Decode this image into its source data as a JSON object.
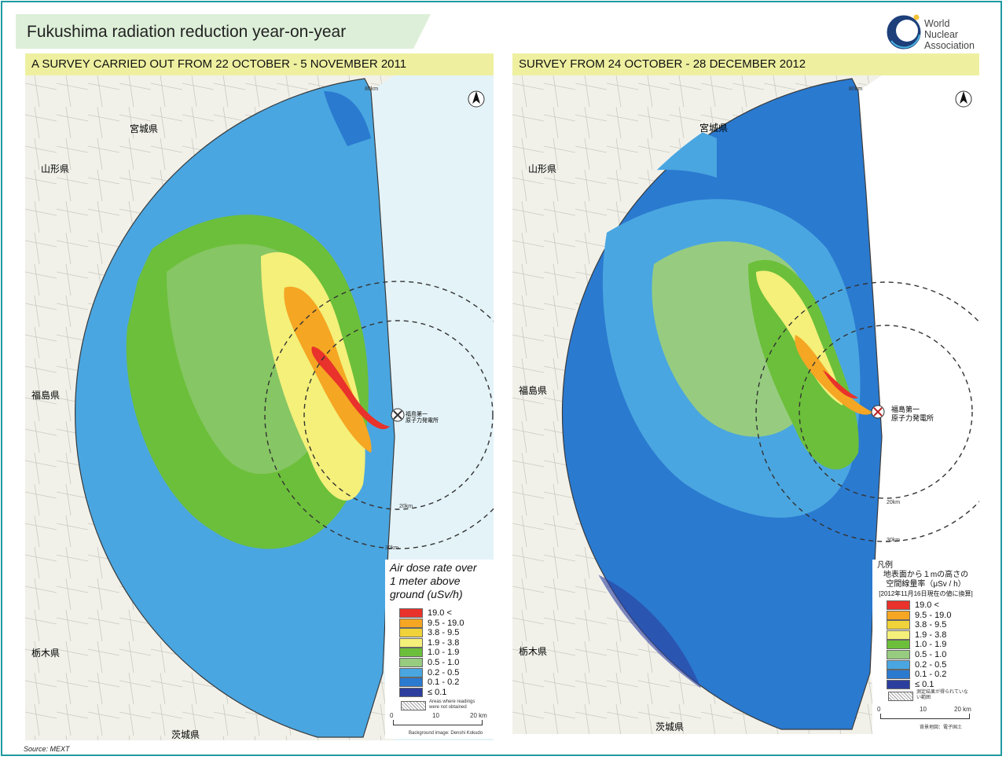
{
  "header": {
    "title": "Fukushima radiation reduction year-on-year",
    "logo_lines": [
      "World",
      "Nuclear",
      "Association"
    ]
  },
  "left_panel": {
    "heading": "A SURVEY CARRIED OUT FROM 22 OCTOBER - 5 NOVEMBER 2011",
    "legend_title": [
      "Air dose rate over",
      "1 meter above",
      "ground (uSv/h)"
    ],
    "bins": [
      {
        "label": "19.0  <",
        "color": "#e8322b"
      },
      {
        "label": "9.5  -  19.0",
        "color": "#f5a623"
      },
      {
        "label": "3.8  -  9.5",
        "color": "#f0d23a"
      },
      {
        "label": "1.9  -  3.8",
        "color": "#f4f07a"
      },
      {
        "label": "1.0  -  1.9",
        "color": "#6cbf3a"
      },
      {
        "label": "0.5  -  1.0",
        "color": "#97cc80"
      },
      {
        "label": "0.2  -  0.5",
        "color": "#4aa6e0"
      },
      {
        "label": "0.1  -  0.2",
        "color": "#2a7ad0"
      },
      {
        "label": "≤  0.1",
        "color": "#2b3e9e"
      }
    ],
    "hatch_note": "Areas where readings were not obtained",
    "scale_ticks": [
      "0",
      "10",
      "20 km"
    ],
    "background_note": "Background image: Denshi Kokudo",
    "ring_labels": [
      "20km",
      "30km",
      "80km"
    ]
  },
  "right_panel": {
    "heading": "SURVEY FROM 24 OCTOBER - 28 DECEMBER 2012",
    "legend_title": [
      "凡例",
      "地表面から１mの高さの",
      "空間線量率（μSv / h）",
      "[2012年11月16日現在の値に換算]"
    ],
    "bins": [
      {
        "label": "19.0  <",
        "color": "#e8322b"
      },
      {
        "label": "9.5  -  19.0",
        "color": "#f5a623"
      },
      {
        "label": "3.8  -  9.5",
        "color": "#f0d23a"
      },
      {
        "label": "1.9  -  3.8",
        "color": "#f4f07a"
      },
      {
        "label": "1.0  -  1.9",
        "color": "#6cbf3a"
      },
      {
        "label": "0.5  -  1.0",
        "color": "#97cc80"
      },
      {
        "label": "0.2  -  0.5",
        "color": "#4aa6e0"
      },
      {
        "label": "0.1  -  0.2",
        "color": "#2a7ad0"
      },
      {
        "label": "≤  0.1",
        "color": "#2b3e9e"
      }
    ],
    "hatch_note": "測定結果が得られていない範囲",
    "scale_ticks": [
      "0",
      "10",
      "20 km"
    ],
    "background_note": "背景地図：電子国土",
    "ring_labels": [
      "20km",
      "30km",
      "80km"
    ],
    "plant_label": [
      "福島第一",
      "原子力発電所"
    ]
  },
  "map_labels": {
    "miyagi": "宮城県",
    "yamagata": "山形県",
    "fukushima": "福島県",
    "tochigi": "栃木県",
    "ibaraki": "茨城県",
    "plant_left": [
      "福島第一",
      "原子力発電所"
    ]
  },
  "source": "Source: MEXT"
}
